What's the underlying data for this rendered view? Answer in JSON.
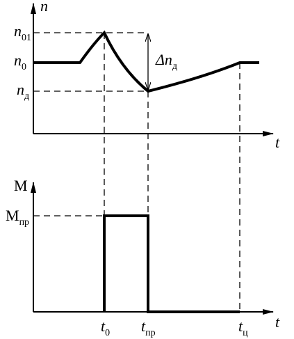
{
  "top_panel": {
    "axis_y": {
      "base": "n"
    },
    "axis_x": {
      "base": "t"
    },
    "levels": [
      {
        "base": "n",
        "sub": "01"
      },
      {
        "base": "n",
        "sub": "0"
      },
      {
        "base": "n",
        "sub": "д"
      }
    ],
    "delta": {
      "base": "Δn",
      "sub": "д"
    }
  },
  "bottom_panel": {
    "axis_y": {
      "base": "M"
    },
    "axis_x": {
      "base": "t"
    },
    "level": {
      "base": "M",
      "sub": "пр"
    },
    "times": [
      {
        "base": "t",
        "sub": "0"
      },
      {
        "base": "t",
        "sub": "пр"
      },
      {
        "base": "t",
        "sub": "ц"
      }
    ]
  }
}
